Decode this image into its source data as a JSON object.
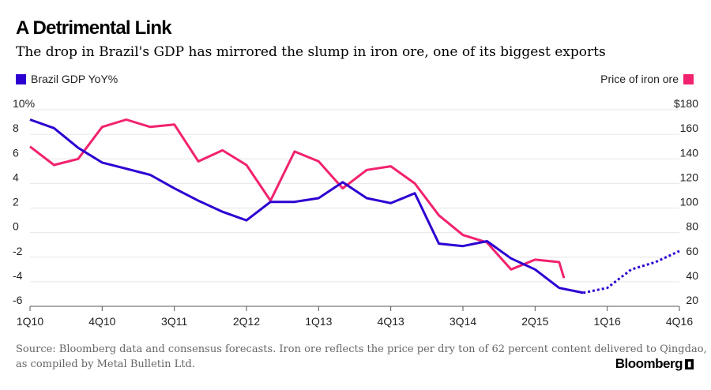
{
  "colors": {
    "gdp": "#2d00d2",
    "ore": "#f2226e",
    "grid": "#e6e6e6",
    "axis": "#555555"
  },
  "brand": {
    "name": "Bloomberg",
    "icon": "terminal-icon"
  },
  "source": "Source: Bloomberg data and consensus forecasts. Iron ore reflects the price per dry ton of 62 percent content delivered to Qingdao, as compiled by Metal Bulletin Ltd.",
  "chart_data": {
    "type": "line",
    "title": "A Detrimental Link",
    "subtitle": "The drop in Brazil's GDP has mirrored the slump in iron ore, one of its biggest exports",
    "x_ticks": [
      "1Q10",
      "4Q10",
      "3Q11",
      "2Q12",
      "1Q13",
      "4Q13",
      "3Q14",
      "2Q15",
      "1Q16",
      "4Q16"
    ],
    "x_tick_index": [
      0,
      3,
      6,
      9,
      12,
      15,
      18,
      21,
      24,
      27
    ],
    "xlim": [
      0,
      27
    ],
    "y_left": {
      "ticks": [
        "10%",
        "8",
        "6",
        "4",
        "2",
        "0",
        "-2",
        "-4",
        "-6"
      ],
      "values": [
        10,
        8,
        6,
        4,
        2,
        0,
        -2,
        -4,
        -6
      ],
      "ylim": [
        -6,
        10
      ]
    },
    "y_right": {
      "ticks": [
        "$180",
        "160",
        "140",
        "120",
        "100",
        "80",
        "60",
        "40",
        "20"
      ],
      "values": [
        180,
        160,
        140,
        120,
        100,
        80,
        60,
        40,
        20
      ],
      "ylim": [
        20,
        180
      ]
    },
    "grid": true,
    "series": [
      {
        "name": "Brazil GDP YoY%",
        "axis": "left",
        "legend": "top-left",
        "x": [
          0,
          1,
          2,
          3,
          4,
          5,
          6,
          7,
          8,
          9,
          10,
          11,
          12,
          13,
          14,
          15,
          16,
          17,
          18,
          19,
          20,
          21,
          22,
          23
        ],
        "values": [
          9.2,
          8.5,
          6.9,
          5.7,
          5.2,
          4.7,
          3.6,
          2.6,
          1.7,
          1.0,
          2.5,
          2.5,
          2.8,
          4.1,
          2.8,
          2.4,
          3.2,
          -0.9,
          -1.1,
          -0.7,
          -2.1,
          -3.0,
          -4.5,
          -4.9
        ],
        "forecast_x": [
          23,
          24,
          25,
          26,
          27
        ],
        "forecast_values": [
          -4.9,
          -4.5,
          -3.0,
          -2.4,
          -1.5
        ]
      },
      {
        "name": "Price of iron ore",
        "axis": "right",
        "legend": "top-right",
        "x": [
          0,
          1,
          2,
          3,
          4,
          5,
          6,
          7,
          8,
          9,
          10,
          11,
          12,
          13,
          14,
          15,
          16,
          17,
          18,
          19,
          20,
          21,
          22,
          23
        ],
        "x_end": 22.2,
        "values": [
          150,
          135,
          140,
          166,
          172,
          166,
          168,
          138,
          147,
          135,
          106,
          146,
          138,
          116,
          131,
          134,
          120,
          94,
          78,
          72,
          50,
          58,
          56,
          43
        ]
      }
    ]
  }
}
